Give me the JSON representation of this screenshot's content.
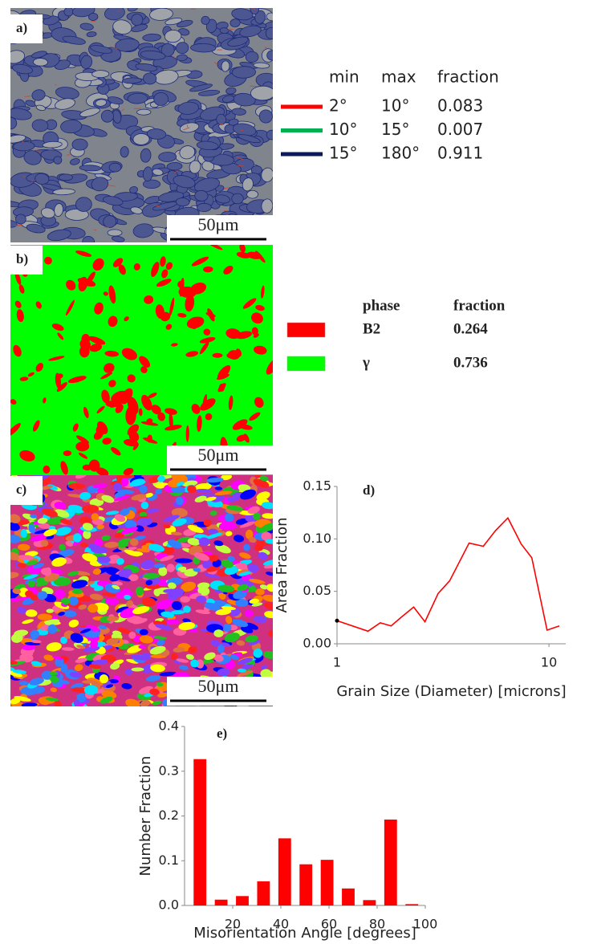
{
  "panels": {
    "a": {
      "label": "a)",
      "scale_bar": "50μm",
      "legend": {
        "headers": [
          "min",
          "max",
          "fraction"
        ],
        "rows": [
          {
            "color": "#ff0000",
            "cells": [
              "2°",
              "10°",
              "0.083"
            ]
          },
          {
            "color": "#00b050",
            "cells": [
              "10°",
              "15°",
              "0.007"
            ]
          },
          {
            "color": "#0a1a5a",
            "cells": [
              "15°",
              "180°",
              "0.911"
            ]
          }
        ]
      }
    },
    "b": {
      "label": "b)",
      "scale_bar": "50μm",
      "legend": {
        "headers": [
          "phase",
          "fraction"
        ],
        "rows": [
          {
            "color": "#ff0000",
            "cells": [
              "B2",
              "0.264"
            ]
          },
          {
            "color": "#00ff00",
            "cells": [
              "γ",
              "0.736"
            ]
          }
        ]
      }
    },
    "c": {
      "label": "c)",
      "scale_bar": "50μm"
    }
  },
  "chart_data": [
    {
      "type": "line",
      "label": "d)",
      "x_label": "Grain Size (Diameter) [microns]",
      "y_label": "Area Fraction",
      "x": [
        1,
        1.4,
        1.6,
        1.8,
        2.0,
        2.3,
        2.6,
        3.0,
        3.4,
        4.2,
        4.9,
        5.6,
        6.4,
        7.4,
        8.3,
        9.8,
        11.2
      ],
      "series": [
        {
          "color": "#ff0000",
          "values": [
            0.022,
            0.012,
            0.02,
            0.017,
            0.025,
            0.035,
            0.021,
            0.048,
            0.06,
            0.096,
            0.093,
            0.108,
            0.12,
            0.095,
            0.082,
            0.013,
            0.017
          ]
        }
      ],
      "start_marker_color": "#000000",
      "xscale": "log",
      "xlim": [
        1,
        12
      ],
      "xticks": [
        1,
        10
      ],
      "ylim": [
        0,
        0.15
      ],
      "yticks": [
        {
          "value": 0,
          "label": "0.00"
        },
        0.05,
        {
          "value": 0.1,
          "label": "0.10"
        },
        0.15
      ]
    },
    {
      "type": "histogram",
      "label": "e)",
      "x_label": "Misorientation Angle [degrees]",
      "y_label": "Number Fraction",
      "bins": [
        2,
        10.8,
        19.6,
        28.4,
        37.2,
        46,
        54.8,
        63.6,
        72.4,
        81.2,
        90,
        98.8
      ],
      "values": [
        0.327,
        0.013,
        0.021,
        0.054,
        0.15,
        0.092,
        0.102,
        0.038,
        0.012,
        0.192,
        0.003
      ],
      "color": "#ff0000",
      "xlim": [
        0,
        100
      ],
      "xticks": [
        20,
        40,
        60,
        80,
        100
      ],
      "ylim": [
        0,
        0.4
      ],
      "yticks": [
        {
          "value": 0,
          "label": "0.0"
        },
        0.1,
        0.2,
        0.3,
        0.4
      ]
    }
  ]
}
